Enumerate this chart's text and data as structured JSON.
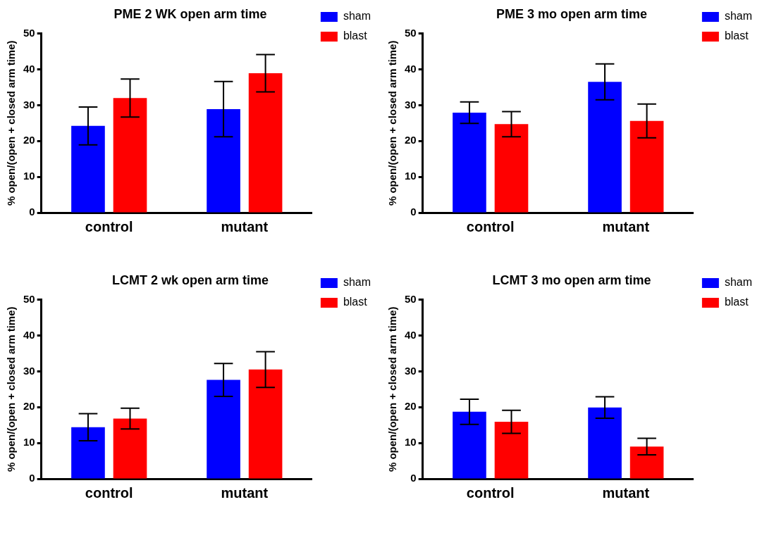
{
  "chart_data": [
    {
      "type": "bar",
      "title": "PME 2 WK open arm time",
      "ylabel": "% open/(open + closed arm time)",
      "categories": [
        "control",
        "mutant"
      ],
      "ylim": [
        0,
        50
      ],
      "yticks": [
        0,
        10,
        20,
        30,
        40,
        50
      ],
      "grid": false,
      "legend": "top right",
      "series": [
        {
          "name": "sham",
          "color": "#0000ff",
          "values": [
            24.2,
            28.9
          ],
          "errors": [
            5.3,
            7.7
          ]
        },
        {
          "name": "blast",
          "color": "#ff0000",
          "values": [
            32.0,
            38.9
          ],
          "errors": [
            5.3,
            5.2
          ]
        }
      ]
    },
    {
      "type": "bar",
      "title": "PME 3 mo open arm time",
      "ylabel": "% open/(open + closed arm time)",
      "categories": [
        "control",
        "mutant"
      ],
      "ylim": [
        0,
        50
      ],
      "yticks": [
        0,
        10,
        20,
        30,
        40,
        50
      ],
      "grid": false,
      "legend": "top right",
      "series": [
        {
          "name": "sham",
          "color": "#0000ff",
          "values": [
            27.9,
            36.5
          ],
          "errors": [
            3.0,
            5.0
          ]
        },
        {
          "name": "blast",
          "color": "#ff0000",
          "values": [
            24.7,
            25.6
          ],
          "errors": [
            3.5,
            4.7
          ]
        }
      ]
    },
    {
      "type": "bar",
      "title": "LCMT 2 wk open arm time",
      "ylabel": "% open/(open + closed arm time)",
      "categories": [
        "control",
        "mutant"
      ],
      "ylim": [
        0,
        50
      ],
      "yticks": [
        0,
        10,
        20,
        30,
        40,
        50
      ],
      "grid": false,
      "legend": "top right",
      "series": [
        {
          "name": "sham",
          "color": "#0000ff",
          "values": [
            14.4,
            27.6
          ],
          "errors": [
            3.8,
            4.6
          ]
        },
        {
          "name": "blast",
          "color": "#ff0000",
          "values": [
            16.8,
            30.5
          ],
          "errors": [
            2.9,
            5.0
          ]
        }
      ]
    },
    {
      "type": "bar",
      "title": "LCMT 3 mo open arm time",
      "ylabel": "% open/(open + closed arm time)",
      "categories": [
        "control",
        "mutant"
      ],
      "ylim": [
        0,
        50
      ],
      "yticks": [
        0,
        10,
        20,
        30,
        40,
        50
      ],
      "grid": false,
      "legend": "top right",
      "series": [
        {
          "name": "sham",
          "color": "#0000ff",
          "values": [
            18.7,
            19.9
          ],
          "errors": [
            3.5,
            3.0
          ]
        },
        {
          "name": "blast",
          "color": "#ff0000",
          "values": [
            15.9,
            9.0
          ],
          "errors": [
            3.2,
            2.3
          ]
        }
      ]
    }
  ]
}
